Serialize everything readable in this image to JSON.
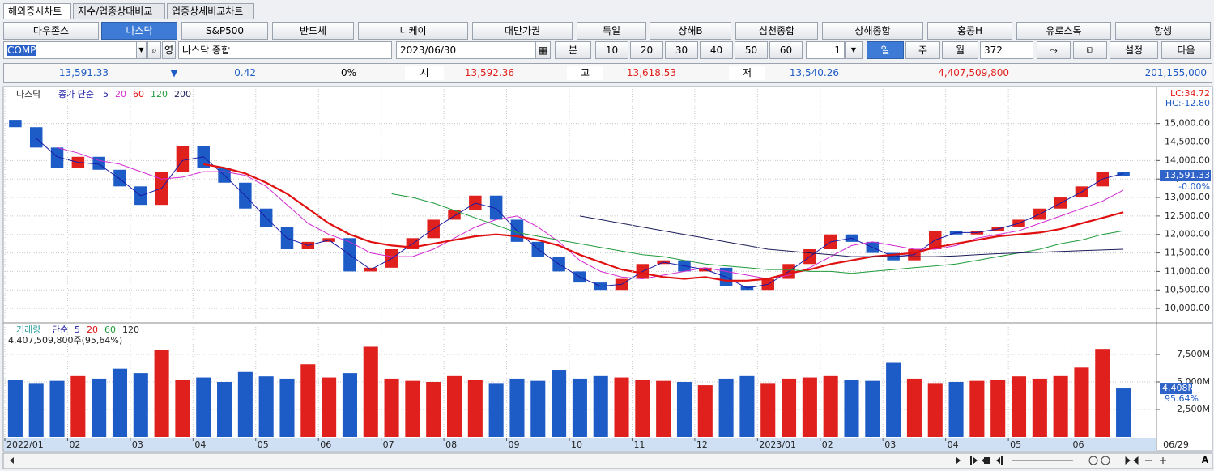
{
  "tabs": [
    "해외증시차트",
    "지수/업종상대비교",
    "업종상세비교차트"
  ],
  "markets": [
    "다우존스",
    "나스닥",
    "S&P500",
    "반도체",
    "니케이",
    "대만가권",
    "독일",
    "상해B",
    "심천종합",
    "상해종합",
    "홍콩H",
    "유로스톡",
    "항셍"
  ],
  "toolbar": {
    "symbol": "COMP",
    "lang": "영",
    "name": "나스닥 종합",
    "date": "2023/06/30",
    "minute": "분",
    "minute_options": [
      "10",
      "20",
      "30",
      "40",
      "50",
      "60"
    ],
    "interval": "1",
    "periods": [
      "일",
      "주",
      "월"
    ],
    "count": "372",
    "settings": "설정",
    "next": "다음"
  },
  "quote": {
    "last": "13,591.33",
    "direction": "▼",
    "change": "0.42",
    "change_pct": "0%",
    "open_label": "시",
    "open": "13,592.36",
    "high_label": "고",
    "high": "13,618.53",
    "low_label": "저",
    "low": "13,540.26",
    "volume": "4,407,509,800",
    "amount": "201,155,000"
  },
  "scroll": {
    "font_button": "A"
  },
  "chart_data": [
    {
      "type": "candlestick",
      "title": "나스닥",
      "legend_label": "종가 단순",
      "up_color": "#e0201c",
      "down_color": "#1d5bc6",
      "open": [
        15100,
        14900,
        14350,
        13800,
        14100,
        13750,
        13300,
        12800,
        13700,
        14400,
        13800,
        13400,
        12700,
        12200,
        11600,
        11800,
        11900,
        11000,
        11100,
        11600,
        11900,
        12400,
        12650,
        13050,
        12400,
        11800,
        11400,
        11000,
        10700,
        10500,
        10800,
        11200,
        11300,
        11000,
        11100,
        10600,
        10500,
        10800,
        11200,
        11600,
        12000,
        11800,
        11500,
        11300,
        11600,
        12100,
        12000,
        12100,
        12200,
        12400,
        12700,
        13000,
        13300,
        13700
      ],
      "close": [
        14900,
        14350,
        13800,
        14100,
        13750,
        13300,
        12800,
        13700,
        14400,
        13800,
        13400,
        12700,
        12200,
        11600,
        11800,
        11900,
        11000,
        11100,
        11600,
        11900,
        12400,
        12650,
        13050,
        12400,
        11800,
        11400,
        11000,
        10700,
        10500,
        10800,
        11200,
        11300,
        11000,
        11100,
        10600,
        10500,
        10800,
        11200,
        11600,
        12000,
        11800,
        11500,
        11300,
        11600,
        12100,
        12000,
        12100,
        12200,
        12400,
        12700,
        13000,
        13300,
        13700,
        13591.33
      ],
      "series": [
        {
          "name": "5",
          "color": "#1a1aa6",
          "values": [
            null,
            14600,
            14100,
            13950,
            13900,
            13500,
            13050,
            13250,
            14000,
            14100,
            13600,
            13050,
            12450,
            11900,
            11700,
            11850,
            11450,
            11050,
            11350,
            11750,
            12150,
            12500,
            12850,
            12700,
            12100,
            11600,
            11200,
            10850,
            10600,
            10650,
            11000,
            11250,
            11150,
            11050,
            10850,
            10550,
            10650,
            11000,
            11400,
            11800,
            11900,
            11650,
            11400,
            11450,
            11850,
            12050,
            12050,
            12150,
            12300,
            12550,
            12850,
            13150,
            13500,
            13650
          ]
        },
        {
          "name": "20",
          "color": "#d22ad2",
          "values": [
            null,
            null,
            14350,
            14200,
            14000,
            13900,
            13700,
            13500,
            13550,
            13700,
            13700,
            13600,
            13300,
            12800,
            12300,
            12000,
            11800,
            11500,
            11400,
            11400,
            11600,
            11900,
            12200,
            12400,
            12500,
            12200,
            11800,
            11300,
            11000,
            10850,
            10800,
            10900,
            11000,
            11100,
            11000,
            10900,
            10800,
            10900,
            11100,
            11400,
            11700,
            11800,
            11700,
            11600,
            11600,
            11700,
            11900,
            12000,
            12100,
            12300,
            12500,
            12700,
            12900,
            13200
          ]
        },
        {
          "name": "60",
          "color": "#e01010",
          "values": [
            null,
            null,
            null,
            null,
            null,
            null,
            null,
            null,
            null,
            13900,
            13800,
            13650,
            13400,
            13100,
            12700,
            12300,
            12000,
            11800,
            11700,
            11650,
            11750,
            11850,
            11950,
            12000,
            11950,
            11850,
            11700,
            11450,
            11250,
            11050,
            10950,
            10850,
            10800,
            10850,
            10750,
            10750,
            10800,
            10950,
            11050,
            11200,
            11300,
            11400,
            11450,
            11500,
            11650,
            11750,
            11850,
            11950,
            12000,
            12050,
            12150,
            12300,
            12450,
            12600
          ]
        },
        {
          "name": "120",
          "color": "#1f9a3a",
          "values": [
            null,
            null,
            null,
            null,
            null,
            null,
            null,
            null,
            null,
            null,
            null,
            null,
            null,
            null,
            null,
            null,
            null,
            null,
            13100,
            13000,
            12850,
            12650,
            12450,
            12250,
            12050,
            11950,
            11850,
            11750,
            11650,
            11550,
            11450,
            11400,
            11300,
            11200,
            11150,
            11100,
            11050,
            11050,
            11000,
            11000,
            10950,
            11000,
            11050,
            11100,
            11150,
            11200,
            11300,
            11400,
            11500,
            11600,
            11750,
            11850,
            12000,
            12100
          ]
        },
        {
          "name": "200",
          "color": "#1c1c5a",
          "values": [
            null,
            null,
            null,
            null,
            null,
            null,
            null,
            null,
            null,
            null,
            null,
            null,
            null,
            null,
            null,
            null,
            null,
            null,
            null,
            null,
            null,
            null,
            null,
            null,
            null,
            null,
            null,
            12500,
            12400,
            12300,
            12200,
            12100,
            12000,
            11900,
            11800,
            11700,
            11600,
            11550,
            11500,
            11450,
            11400,
            11400,
            11400,
            11400,
            11400,
            11420,
            11450,
            11480,
            11500,
            11520,
            11540,
            11560,
            11580,
            11600
          ]
        }
      ],
      "ylim": [
        9630,
        15890
      ],
      "yticks": [
        {
          "value": 10000,
          "label": "10,000.00"
        },
        {
          "value": 10500,
          "label": "10,500.00"
        },
        {
          "value": 11000,
          "label": "11,000.00"
        },
        {
          "value": 11500,
          "label": "11,500.00"
        },
        {
          "value": 12000,
          "label": "12,000.00"
        },
        {
          "value": 12500,
          "label": "12,500.00"
        },
        {
          "value": 13000,
          "label": "13,000.00"
        },
        {
          "value": 13500,
          "label": "13,500.00"
        },
        {
          "value": 14000,
          "label": "14,000.00"
        },
        {
          "value": 14500,
          "label": "14,500.00"
        },
        {
          "value": 15000,
          "label": "15,000.00"
        }
      ],
      "last_label": "13,591.33",
      "change_label": "-0.00%",
      "annotations": [
        "LC:34.72",
        "HC:-12.80"
      ],
      "grid": true
    },
    {
      "type": "bar",
      "title": "거래량",
      "legend_label": "단순",
      "subtitle": "4,407,509,800주(95,64%)",
      "legend": [
        {
          "name": "5",
          "color": "#1a1aa6"
        },
        {
          "name": "20",
          "color": "#e01010"
        },
        {
          "name": "60",
          "color": "#1f9a3a"
        },
        {
          "name": "120",
          "color": "#222222"
        }
      ],
      "values": [
        5200,
        4900,
        5100,
        5600,
        5300,
        6200,
        5800,
        7900,
        5200,
        5400,
        5000,
        5900,
        5500,
        5300,
        6600,
        5400,
        5800,
        8200,
        5300,
        5100,
        5000,
        5600,
        5200,
        4900,
        5300,
        5100,
        6100,
        5300,
        5600,
        5400,
        5200,
        5100,
        5000,
        4700,
        5300,
        5600,
        4900,
        5300,
        5400,
        5600,
        5200,
        5100,
        6800,
        5300,
        4900,
        5000,
        5100,
        5200,
        5500,
        5300,
        5600,
        6300,
        8000,
        4408
      ],
      "ylim": [
        0,
        10220
      ],
      "yticks": [
        {
          "value": 2500,
          "label": "2,500M"
        },
        {
          "value": 5000,
          "label": "5,000M"
        },
        {
          "value": 7500,
          "label": "7,500M"
        }
      ],
      "last_label": "4,408M",
      "ratio_label": "95.64%",
      "xticks": [
        {
          "value": 0,
          "label": "2022/01"
        },
        {
          "value": 3,
          "label": "02"
        },
        {
          "value": 6,
          "label": "03"
        },
        {
          "value": 9,
          "label": "04"
        },
        {
          "value": 12,
          "label": "05"
        },
        {
          "value": 15,
          "label": "06"
        },
        {
          "value": 18,
          "label": "07"
        },
        {
          "value": 21,
          "label": "08"
        },
        {
          "value": 24,
          "label": "09"
        },
        {
          "value": 27,
          "label": "10"
        },
        {
          "value": 30,
          "label": "11"
        },
        {
          "value": 33,
          "label": "12"
        },
        {
          "value": 36,
          "label": "2023/01"
        },
        {
          "value": 39,
          "label": "02"
        },
        {
          "value": 42,
          "label": "03"
        },
        {
          "value": 45,
          "label": "04"
        },
        {
          "value": 48,
          "label": "05"
        },
        {
          "value": 51,
          "label": "06"
        }
      ],
      "end_date": "06/29",
      "grid": true
    }
  ]
}
